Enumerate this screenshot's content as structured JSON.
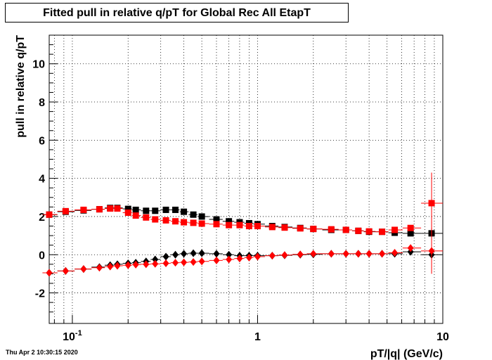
{
  "title": "Fitted pull in relative q/pT for Global Rec All EtapT",
  "footer": "Thu Apr  2 10:30:15 2020",
  "chart_data": {
    "type": "scatter",
    "title": "Fitted pull in relative q/pT for Global Rec All EtapT",
    "xlabel": "pT/|q| (GeV/c)",
    "ylabel": "pull in relative q/pT",
    "xscale": "log",
    "xlim": [
      0.075,
      10
    ],
    "ylim": [
      -3.6,
      11.5
    ],
    "grid": true,
    "x_ticks": [
      "10^-1",
      "1",
      "10"
    ],
    "y_ticks": [
      "-2",
      "0",
      "2",
      "4",
      "6",
      "8",
      "10"
    ],
    "series": [
      {
        "color": "#000000",
        "marker": "square",
        "x": [
          0.075,
          0.092,
          0.115,
          0.14,
          0.16,
          0.175,
          0.2,
          0.22,
          0.25,
          0.28,
          0.32,
          0.36,
          0.4,
          0.45,
          0.5,
          0.6,
          0.7,
          0.8,
          0.9,
          1.0,
          1.2,
          1.4,
          1.7,
          2.0,
          2.5,
          3.0,
          3.5,
          4.0,
          4.7,
          5.5,
          6.7,
          8.7
        ],
        "y": [
          2.1,
          2.25,
          2.32,
          2.38,
          2.45,
          2.45,
          2.4,
          2.35,
          2.3,
          2.3,
          2.35,
          2.35,
          2.25,
          2.1,
          2.0,
          1.85,
          1.75,
          1.7,
          1.65,
          1.6,
          1.5,
          1.45,
          1.4,
          1.35,
          1.3,
          1.3,
          1.25,
          1.2,
          1.2,
          1.15,
          1.12,
          1.12
        ]
      },
      {
        "color": "#ff0000",
        "marker": "square",
        "x": [
          0.075,
          0.092,
          0.115,
          0.14,
          0.16,
          0.175,
          0.2,
          0.22,
          0.25,
          0.28,
          0.32,
          0.36,
          0.4,
          0.45,
          0.5,
          0.6,
          0.7,
          0.8,
          0.9,
          1.0,
          1.2,
          1.4,
          1.7,
          2.0,
          2.5,
          3.0,
          3.5,
          4.0,
          4.7,
          5.5,
          6.7,
          8.7
        ],
        "y": [
          2.1,
          2.28,
          2.35,
          2.38,
          2.42,
          2.42,
          2.2,
          2.05,
          1.95,
          1.85,
          1.8,
          1.75,
          1.7,
          1.67,
          1.63,
          1.6,
          1.55,
          1.55,
          1.5,
          1.5,
          1.45,
          1.42,
          1.38,
          1.35,
          1.33,
          1.3,
          1.25,
          1.22,
          1.2,
          1.3,
          1.4,
          2.7
        ]
      },
      {
        "color": "#000000",
        "marker": "diamond",
        "x": [
          0.075,
          0.092,
          0.115,
          0.14,
          0.16,
          0.175,
          0.2,
          0.22,
          0.25,
          0.28,
          0.32,
          0.36,
          0.4,
          0.45,
          0.5,
          0.6,
          0.7,
          0.8,
          0.9,
          1.0,
          1.2,
          1.4,
          1.7,
          2.0,
          2.5,
          3.0,
          3.5,
          4.0,
          4.7,
          5.5,
          6.7,
          8.7
        ],
        "y": [
          -0.95,
          -0.85,
          -0.75,
          -0.65,
          -0.55,
          -0.5,
          -0.45,
          -0.42,
          -0.35,
          -0.25,
          -0.1,
          0.0,
          0.05,
          0.08,
          0.08,
          0.05,
          0.0,
          -0.05,
          -0.05,
          -0.05,
          -0.05,
          -0.03,
          0.0,
          0.02,
          0.05,
          0.05,
          0.05,
          0.05,
          0.05,
          0.05,
          0.15,
          0.0
        ]
      },
      {
        "color": "#ff0000",
        "marker": "diamond",
        "x": [
          0.075,
          0.092,
          0.115,
          0.14,
          0.16,
          0.175,
          0.2,
          0.22,
          0.25,
          0.28,
          0.32,
          0.36,
          0.4,
          0.45,
          0.5,
          0.6,
          0.7,
          0.8,
          0.9,
          1.0,
          1.2,
          1.4,
          1.7,
          2.0,
          2.5,
          3.0,
          3.5,
          4.0,
          4.7,
          5.5,
          6.7,
          8.7
        ],
        "y": [
          -0.95,
          -0.85,
          -0.75,
          -0.68,
          -0.62,
          -0.58,
          -0.55,
          -0.52,
          -0.5,
          -0.48,
          -0.45,
          -0.42,
          -0.4,
          -0.38,
          -0.35,
          -0.3,
          -0.25,
          -0.2,
          -0.15,
          -0.1,
          -0.05,
          -0.02,
          0.02,
          0.05,
          0.05,
          0.05,
          0.05,
          0.05,
          0.05,
          0.1,
          0.35,
          0.2
        ]
      }
    ]
  }
}
